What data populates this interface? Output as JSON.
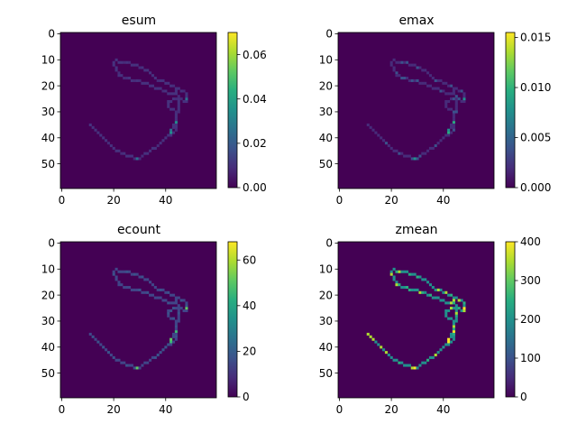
{
  "colors": {
    "viridis_low": "#440154",
    "viridis_high": "#fde725"
  },
  "chart_data": [
    {
      "type": "heatmap",
      "title": "esum",
      "shape": [
        60,
        60
      ],
      "xticks": [
        "0",
        "20",
        "40"
      ],
      "yticks": [
        "0",
        "10",
        "20",
        "30",
        "40",
        "50"
      ],
      "colorbar": {
        "range": [
          0,
          0.07
        ],
        "ticks": [
          "0.00",
          "0.02",
          "0.04",
          "0.06"
        ]
      },
      "values": "sparse energy sum along a closed track; background 0; most track pixels ~0.004; hotspots up to ~0.02 near (41,37)"
    },
    {
      "type": "heatmap",
      "title": "emax",
      "shape": [
        60,
        60
      ],
      "xticks": [
        "0",
        "20",
        "40"
      ],
      "yticks": [
        "0",
        "10",
        "20",
        "30",
        "40",
        "50"
      ],
      "colorbar": {
        "range": [
          0,
          0.0155
        ],
        "ticks": [
          "0.000",
          "0.005",
          "0.010",
          "0.015"
        ]
      },
      "values": "sparse max energy along the same track; background 0; track pixels ~0.002; hotspots ~0.008"
    },
    {
      "type": "heatmap",
      "title": "ecount",
      "shape": [
        60,
        60
      ],
      "xticks": [
        "0",
        "20",
        "40"
      ],
      "yticks": [
        "0",
        "10",
        "20",
        "30",
        "40",
        "50"
      ],
      "colorbar": {
        "range": [
          0,
          68
        ],
        "ticks": [
          "0",
          "20",
          "40",
          "60"
        ]
      },
      "values": "hit counts along the track; background 0; track pixels ~10; hotspot ~40 near (41,37)"
    },
    {
      "type": "heatmap",
      "title": "zmean",
      "shape": [
        60,
        60
      ],
      "xticks": [
        "0",
        "20",
        "40"
      ],
      "yticks": [
        "0",
        "10",
        "20",
        "30",
        "40",
        "50"
      ],
      "colorbar": {
        "range": [
          0,
          400
        ],
        "ticks": [
          "0",
          "100",
          "200",
          "300",
          "400"
        ]
      },
      "values": "mean z along the track; background 0; track pixels ~230-300; some ~380"
    }
  ]
}
